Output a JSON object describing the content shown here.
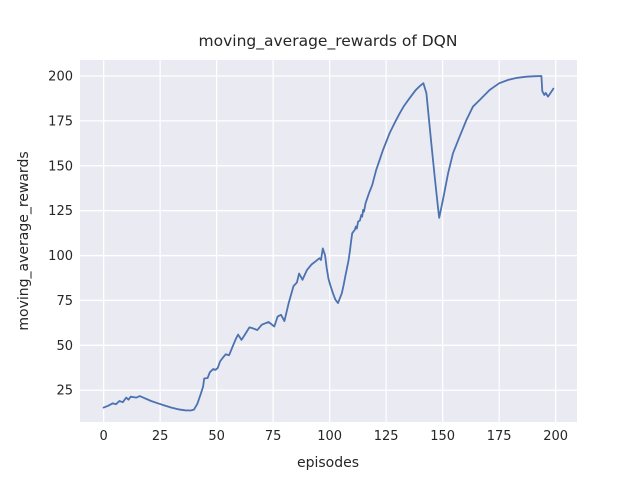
{
  "figure": {
    "title": "moving_average_rewards of DQN",
    "xlabel": "episodes",
    "ylabel": "moving_average_rewards"
  },
  "chart_data": {
    "type": "line",
    "title": "moving_average_rewards of DQN",
    "xlabel": "episodes",
    "ylabel": "moving_average_rewards",
    "style": "seaborn-darkgrid",
    "grid": true,
    "legend_position": "none",
    "xlim": [
      -10.45,
      209.45
    ],
    "ylim": [
      7.3,
      208.9
    ],
    "xticks": [
      0,
      25,
      50,
      75,
      100,
      125,
      150,
      175,
      200
    ],
    "yticks": [
      25,
      50,
      75,
      100,
      125,
      150,
      175,
      200
    ],
    "colors": {
      "line": "#4C72B0",
      "plot_background": "#EAEAF2",
      "grid": "#FFFFFF",
      "figure_background": "#FFFFFF",
      "text": "#262626"
    },
    "series": [
      {
        "name": "moving_average_rewards",
        "points": [
          [
            0,
            15.3
          ],
          [
            2,
            16.3
          ],
          [
            4,
            17.7
          ],
          [
            5.5,
            17.2
          ],
          [
            7,
            19
          ],
          [
            8.5,
            18.3
          ],
          [
            10,
            20.9
          ],
          [
            11,
            19.7
          ],
          [
            12,
            21.4
          ],
          [
            14.5,
            20.9
          ],
          [
            16,
            21.7
          ],
          [
            18,
            20.6
          ],
          [
            21,
            19
          ],
          [
            24,
            17.7
          ],
          [
            27,
            16.5
          ],
          [
            30,
            15.3
          ],
          [
            33,
            14.4
          ],
          [
            36,
            13.8
          ],
          [
            38.5,
            13.7
          ],
          [
            40,
            14.2
          ],
          [
            41.5,
            17.5
          ],
          [
            43,
            23
          ],
          [
            44,
            27
          ],
          [
            44.5,
            31.5
          ],
          [
            46,
            31.8
          ],
          [
            47,
            35
          ],
          [
            48.5,
            36.8
          ],
          [
            49.5,
            36.3
          ],
          [
            50.5,
            37.5
          ],
          [
            51.5,
            41
          ],
          [
            53,
            43.5
          ],
          [
            54,
            45
          ],
          [
            55.5,
            44.5
          ],
          [
            57,
            49
          ],
          [
            58.5,
            53.5
          ],
          [
            59.5,
            56
          ],
          [
            61,
            53
          ],
          [
            62.5,
            56
          ],
          [
            64.5,
            60
          ],
          [
            66,
            59.5
          ],
          [
            68,
            58.5
          ],
          [
            70,
            61.5
          ],
          [
            73,
            63
          ],
          [
            75.5,
            60.5
          ],
          [
            77,
            66
          ],
          [
            78.5,
            67
          ],
          [
            80,
            63.5
          ],
          [
            82,
            74
          ],
          [
            84,
            83
          ],
          [
            85.5,
            85
          ],
          [
            86.5,
            90
          ],
          [
            88,
            86.5
          ],
          [
            90,
            92
          ],
          [
            92,
            95
          ],
          [
            94,
            97
          ],
          [
            95.5,
            98.5
          ],
          [
            96.2,
            97.5
          ],
          [
            97,
            104
          ],
          [
            98,
            100
          ],
          [
            98.7,
            93
          ],
          [
            99.5,
            87
          ],
          [
            100.3,
            83.5
          ],
          [
            101.5,
            79
          ],
          [
            102.5,
            75.5
          ],
          [
            103.7,
            73.5
          ],
          [
            105.4,
            79
          ],
          [
            106.2,
            83.5
          ],
          [
            107,
            89
          ],
          [
            107.7,
            93
          ],
          [
            108.4,
            97.5
          ],
          [
            109,
            103
          ],
          [
            109.5,
            108
          ],
          [
            110,
            112.4
          ],
          [
            110.8,
            113.8
          ],
          [
            111.2,
            114.4
          ],
          [
            111.6,
            116.1
          ],
          [
            112,
            115
          ],
          [
            112.6,
            118.9
          ],
          [
            113.4,
            119.5
          ],
          [
            114,
            122.6
          ],
          [
            114.4,
            121.7
          ],
          [
            114.8,
            125.4
          ],
          [
            115.2,
            124.5
          ],
          [
            115.9,
            129.2
          ],
          [
            117.4,
            134.7
          ],
          [
            118.9,
            139.4
          ],
          [
            120.6,
            147.7
          ],
          [
            123.6,
            158.8
          ],
          [
            126.5,
            168
          ],
          [
            129,
            174.5
          ],
          [
            131,
            179.2
          ],
          [
            133,
            183.5
          ],
          [
            135.4,
            187.6
          ],
          [
            138,
            192
          ],
          [
            140,
            194.5
          ],
          [
            141.5,
            196
          ],
          [
            142.8,
            190.4
          ],
          [
            145,
            162.5
          ],
          [
            146.5,
            143.9
          ],
          [
            147.9,
            127.2
          ],
          [
            148.5,
            121
          ],
          [
            150.1,
            131
          ],
          [
            152.4,
            145.8
          ],
          [
            154.6,
            157
          ],
          [
            157.5,
            166.2
          ],
          [
            160.5,
            175.5
          ],
          [
            163.4,
            182.9
          ],
          [
            166.4,
            186.6
          ],
          [
            170.8,
            192.2
          ],
          [
            175,
            195.9
          ],
          [
            179,
            197.8
          ],
          [
            183,
            199
          ],
          [
            187,
            199.6
          ],
          [
            190,
            199.8
          ],
          [
            193.7,
            200
          ],
          [
            194.1,
            191.5
          ],
          [
            195,
            189.4
          ],
          [
            195.6,
            190.6
          ],
          [
            196.6,
            188.5
          ],
          [
            198,
            191
          ],
          [
            199,
            193
          ]
        ]
      }
    ]
  }
}
